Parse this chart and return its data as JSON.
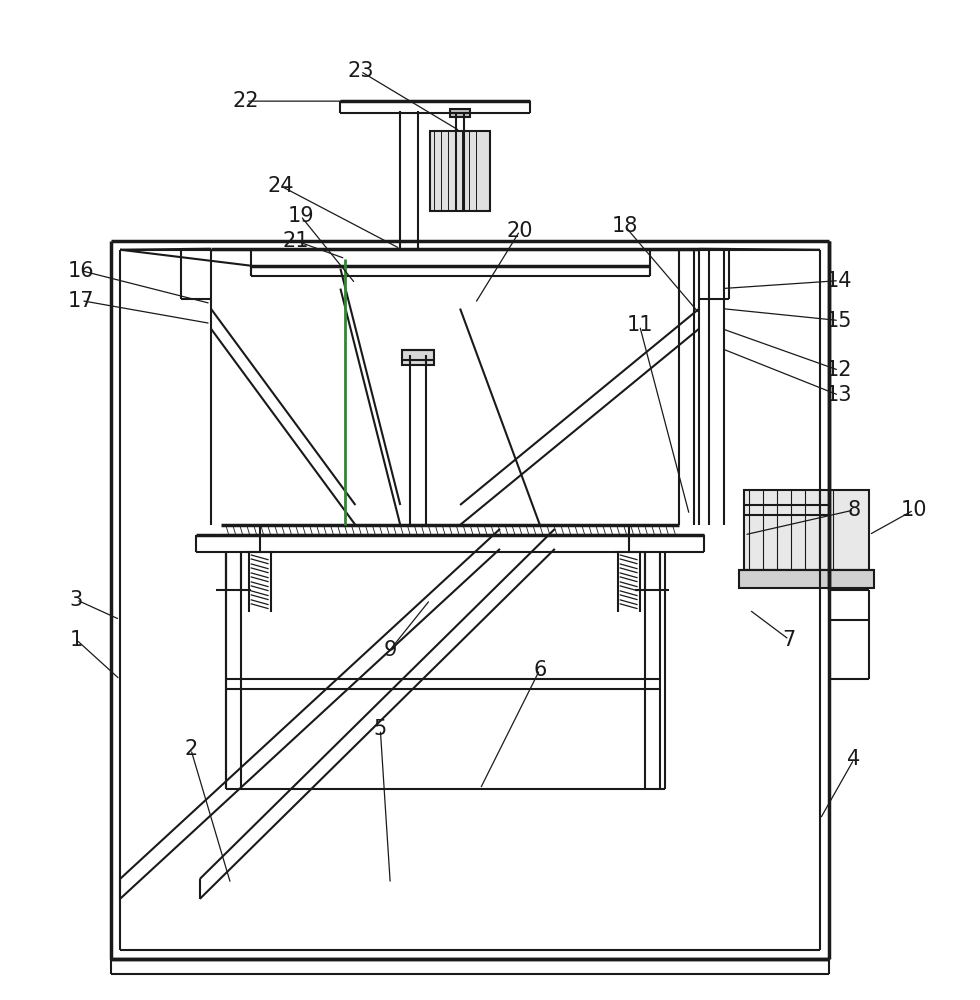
{
  "bg_color": "#ffffff",
  "lc": "#1a1a1a",
  "lw": 1.5,
  "tlw": 2.5,
  "label_fontsize": 15,
  "label_color": "#1a1a1a"
}
